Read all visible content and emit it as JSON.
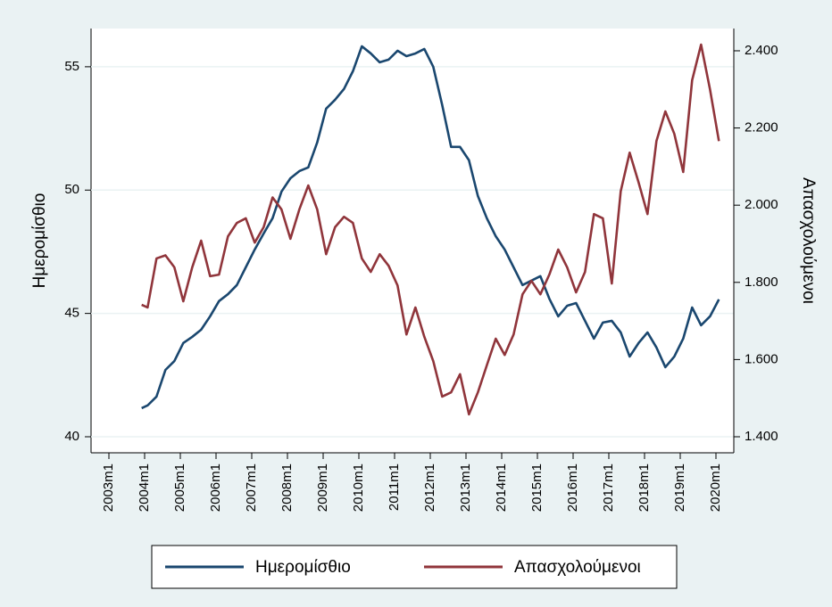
{
  "chart_data": {
    "type": "line",
    "x": [
      "2003m12",
      "2004m2",
      "2004m5",
      "2004m8",
      "2004m11",
      "2005m2",
      "2005m5",
      "2005m8",
      "2005m11",
      "2006m2",
      "2006m5",
      "2006m8",
      "2006m11",
      "2007m2",
      "2007m5",
      "2007m8",
      "2007m11",
      "2008m2",
      "2008m5",
      "2008m8",
      "2008m11",
      "2009m2",
      "2009m5",
      "2009m8",
      "2009m11",
      "2010m2",
      "2010m5",
      "2010m8",
      "2010m11",
      "2011m2",
      "2011m5",
      "2011m8",
      "2011m11",
      "2012m2",
      "2012m5",
      "2012m8",
      "2012m11",
      "2013m2",
      "2013m5",
      "2013m8",
      "2013m11",
      "2014m2",
      "2014m5",
      "2014m8",
      "2014m11",
      "2015m2",
      "2015m5",
      "2015m8",
      "2015m11",
      "2016m2",
      "2016m5",
      "2016m8",
      "2016m11",
      "2017m2",
      "2017m5",
      "2017m8",
      "2017m11",
      "2018m2",
      "2018m5",
      "2018m8",
      "2018m11",
      "2019m2",
      "2019m5",
      "2019m8",
      "2019m11",
      "2020m2"
    ],
    "series": [
      {
        "name": "Ημερομίσθιο",
        "color": "#1a476f",
        "axis": "y",
        "values": [
          41.16,
          41.27,
          41.63,
          42.71,
          43.07,
          43.8,
          44.05,
          44.34,
          44.88,
          45.5,
          45.78,
          46.15,
          46.87,
          47.59,
          48.24,
          48.86,
          49.94,
          50.48,
          50.77,
          50.92,
          51.93,
          53.3,
          53.66,
          54.1,
          54.82,
          55.83,
          55.54,
          55.18,
          55.29,
          55.65,
          55.43,
          55.54,
          55.72,
          55.0,
          53.45,
          51.75,
          51.75,
          51.21,
          49.76,
          48.86,
          48.13,
          47.59,
          46.87,
          46.15,
          46.33,
          46.51,
          45.6,
          44.88,
          45.31,
          45.42,
          44.7,
          43.98,
          44.63,
          44.7,
          44.23,
          43.25,
          43.8,
          44.23,
          43.62,
          42.82,
          43.25,
          43.98,
          45.24,
          44.52,
          44.88,
          45.57
        ]
      },
      {
        "name": "Απασχολούμενοι",
        "color": "#90353b",
        "axis": "y2",
        "values": [
          1742,
          1735,
          1862,
          1870,
          1839,
          1751,
          1839,
          1908,
          1816,
          1820,
          1919,
          1954,
          1966,
          1903,
          1943,
          2020,
          1989,
          1913,
          1989,
          2051,
          1989,
          1873,
          1943,
          1970,
          1954,
          1862,
          1827,
          1873,
          1843,
          1792,
          1665,
          1735,
          1659,
          1596,
          1504,
          1515,
          1562,
          1458,
          1515,
          1585,
          1654,
          1612,
          1665,
          1769,
          1804,
          1769,
          1820,
          1885,
          1839,
          1774,
          1827,
          1977,
          1966,
          1797,
          2036,
          2136,
          2059,
          1977,
          2166,
          2243,
          2185,
          2086,
          2324,
          2416,
          2300,
          2166
        ]
      }
    ],
    "y_label": "Ημερομίσθιο",
    "y2_label": "Απασχολούμενοι",
    "xlim": [
      "2002m7",
      "2020m7"
    ],
    "xticks": [
      "2003m1",
      "2004m1",
      "2005m1",
      "2006m1",
      "2007m1",
      "2008m1",
      "2009m1",
      "2010m1",
      "2011m1",
      "2012m1",
      "2013m1",
      "2014m1",
      "2015m1",
      "2016m1",
      "2017m1",
      "2018m1",
      "2019m1",
      "2020m1"
    ],
    "ylim": [
      39.35,
      56.55
    ],
    "yticks": [
      40,
      45,
      50,
      55
    ],
    "y2lim": [
      1358.4,
      2457.7
    ],
    "y2ticks": [
      {
        "value": 1400,
        "label": "1.400"
      },
      {
        "value": 1600,
        "label": "1.600"
      },
      {
        "value": 1800,
        "label": "1.800"
      },
      {
        "value": 2000,
        "label": "2.000"
      },
      {
        "value": 2200,
        "label": "2.200"
      },
      {
        "value": 2400,
        "label": "2.400"
      }
    ],
    "grid": true,
    "legend": "bottom"
  }
}
